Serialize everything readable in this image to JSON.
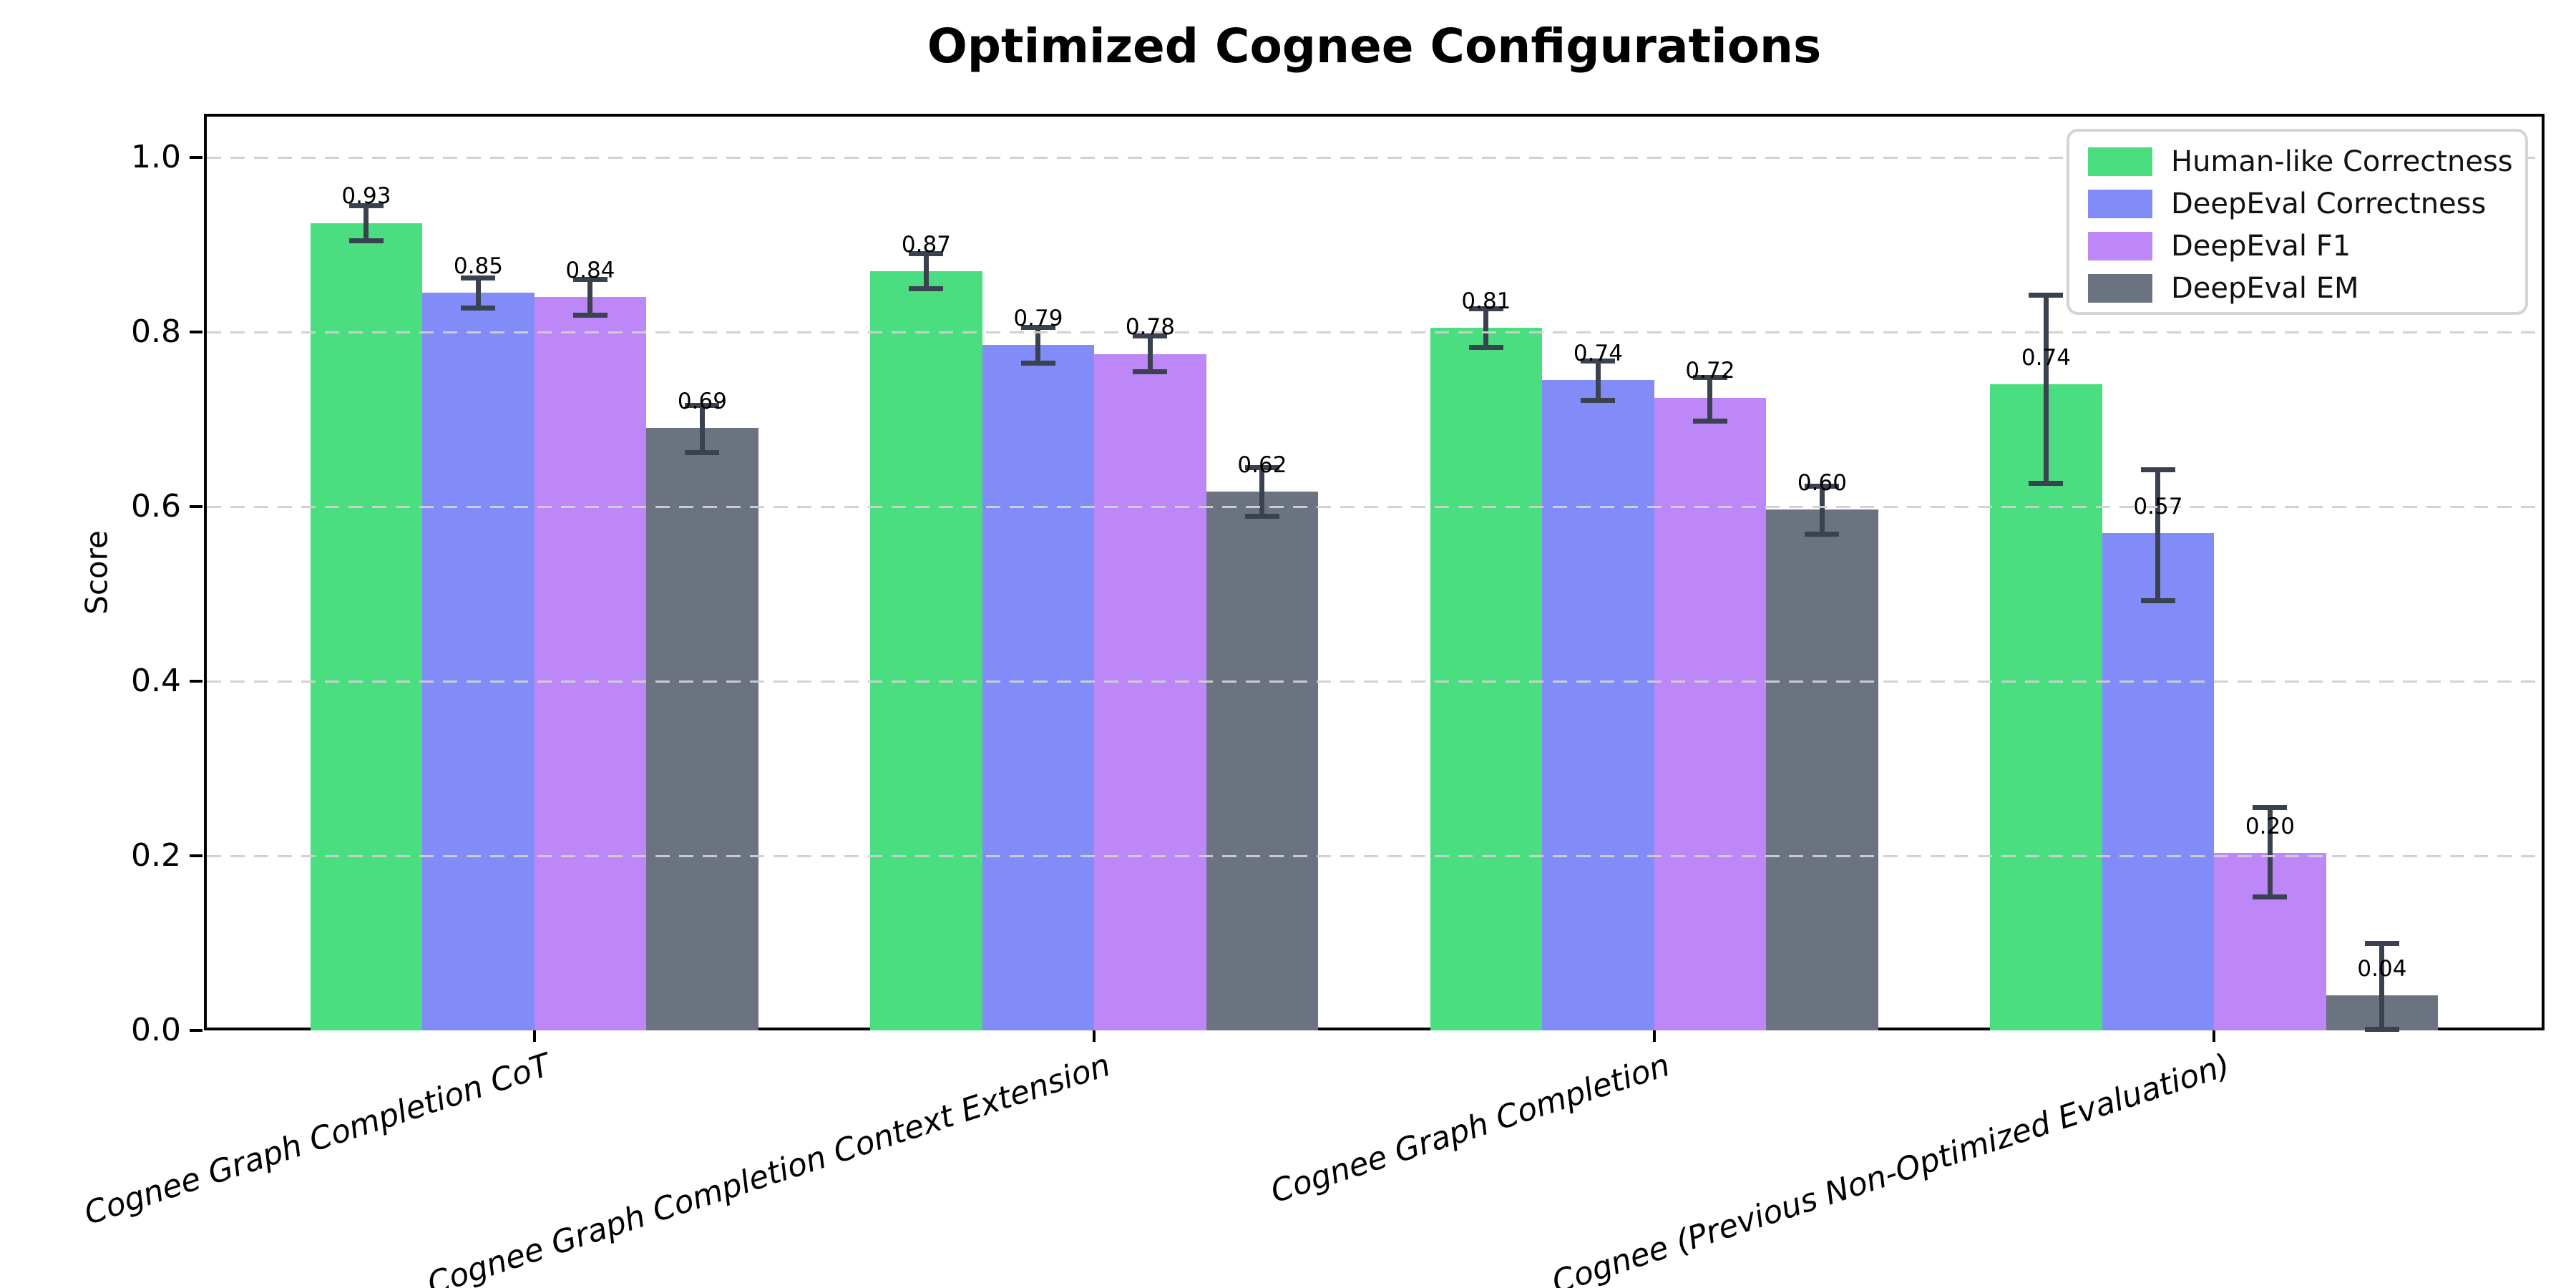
{
  "title": "Optimized Cognee Configurations",
  "chart_data": {
    "type": "bar",
    "title": "Optimized Cognee Configurations",
    "xlabel": "",
    "ylabel": "Score",
    "ylim": [
      0,
      1.05
    ],
    "yticks": [
      "0.0",
      "0.2",
      "0.4",
      "0.6",
      "0.8",
      "1.0"
    ],
    "ytick_values": [
      0.0,
      0.2,
      0.4,
      0.6,
      0.8,
      1.0
    ],
    "grid": "horizontal dashed gridlines drawn over bars",
    "legend_position": "upper right",
    "error_bar_color": "#3a4250",
    "categories": [
      "Cognee Graph Completion CoT",
      "Cognee Graph Completion Context Extension",
      "Cognee Graph Completion",
      "Cognee (Previous Non-Optimized Evaluation)"
    ],
    "series": [
      {
        "name": "Human-like Correctness",
        "color": "#4ade80",
        "values": [
          0.925,
          0.87,
          0.805,
          0.74
        ],
        "labels": [
          "0.93",
          "0.87",
          "0.81",
          "0.74"
        ],
        "err_low": [
          0.905,
          0.85,
          0.783,
          0.627
        ],
        "err_high": [
          0.945,
          0.89,
          0.827,
          0.843
        ]
      },
      {
        "name": "DeepEval Correctness",
        "color": "#818cf8",
        "values": [
          0.845,
          0.785,
          0.745,
          0.57
        ],
        "labels": [
          "0.85",
          "0.79",
          "0.74",
          "0.57"
        ],
        "err_low": [
          0.828,
          0.765,
          0.722,
          0.493
        ],
        "err_high": [
          0.862,
          0.806,
          0.767,
          0.643
        ]
      },
      {
        "name": "DeepEval F1",
        "color": "#bd87f8",
        "values": [
          0.84,
          0.775,
          0.725,
          0.203
        ],
        "labels": [
          "0.84",
          "0.78",
          "0.72",
          "0.20"
        ],
        "err_low": [
          0.82,
          0.755,
          0.698,
          0.153
        ],
        "err_high": [
          0.861,
          0.796,
          0.748,
          0.256
        ]
      },
      {
        "name": "DeepEval EM",
        "color": "#6b7280",
        "values": [
          0.69,
          0.617,
          0.597,
          0.04
        ],
        "labels": [
          "0.69",
          "0.62",
          "0.60",
          "0.04"
        ],
        "err_low": [
          0.662,
          0.589,
          0.569,
          0.002
        ],
        "err_high": [
          0.716,
          0.645,
          0.624,
          0.1
        ]
      }
    ]
  }
}
